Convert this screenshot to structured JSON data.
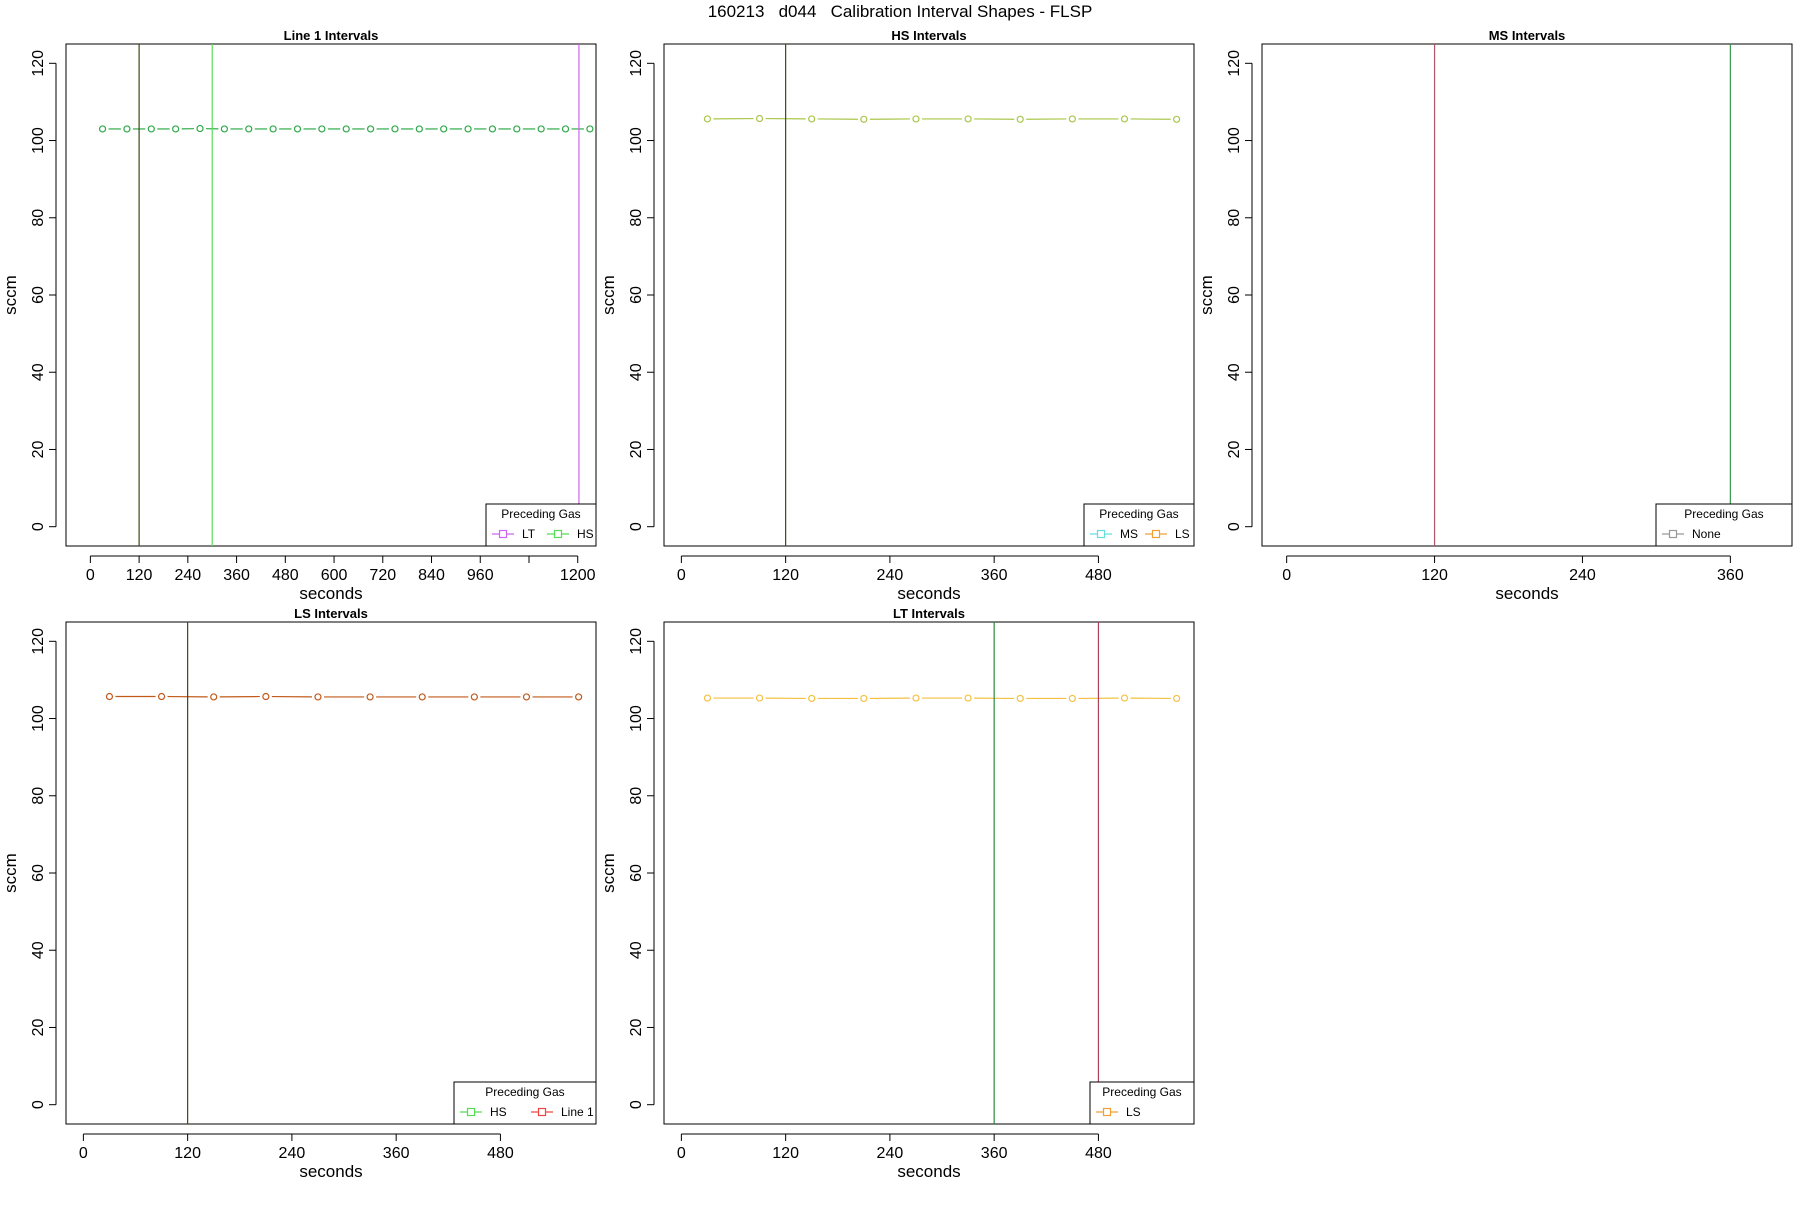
{
  "figure": {
    "title": "160213   d044   Calibration Interval Shapes - FLSP"
  },
  "chart_data": [
    {
      "type": "line",
      "title": "Line 1 Intervals",
      "xlabel": "seconds",
      "ylabel": "sccm",
      "xlim": [
        -60,
        1245
      ],
      "ylim": [
        -5,
        125
      ],
      "x_ticks": [
        0,
        120,
        240,
        360,
        480,
        600,
        720,
        840,
        960,
        1080,
        1200
      ],
      "x_tick_labels": [
        "0",
        "120",
        "240",
        "360",
        "480",
        "600",
        "720",
        "840",
        "960",
        "",
        "1200"
      ],
      "y_ticks": [
        0,
        20,
        40,
        60,
        80,
        100,
        120
      ],
      "series": [
        {
          "color": "#2faa4a",
          "x": [
            30,
            90,
            150,
            210,
            270,
            330,
            390,
            450,
            510,
            570,
            630,
            690,
            750,
            810,
            870,
            930,
            990,
            1050,
            1110,
            1170,
            1230
          ],
          "y": [
            103,
            103,
            103,
            103,
            103.1,
            103,
            103,
            103,
            103,
            103,
            103,
            103,
            103,
            103,
            103,
            103,
            103,
            103,
            103,
            103,
            103
          ]
        }
      ],
      "vlines": [
        {
          "x": 120,
          "color": "#3d4a12"
        },
        {
          "x": 300,
          "color": "#55dd55"
        },
        {
          "x": 1203,
          "color": "#cc66ee"
        }
      ],
      "legend": {
        "title": "Preceding Gas",
        "position": "bottom-right",
        "entries": [
          {
            "label": "LT",
            "color": "#cc66ee"
          },
          {
            "label": "HS",
            "color": "#55dd55"
          }
        ]
      }
    },
    {
      "type": "line",
      "title": "HS Intervals",
      "xlabel": "seconds",
      "ylabel": "sccm",
      "xlim": [
        -20,
        590
      ],
      "ylim": [
        -5,
        125
      ],
      "x_ticks": [
        0,
        120,
        240,
        360,
        480
      ],
      "x_tick_labels": [
        "0",
        "120",
        "240",
        "360",
        "480"
      ],
      "y_ticks": [
        0,
        20,
        40,
        60,
        80,
        100,
        120
      ],
      "series": [
        {
          "color": "#a8c64a",
          "x": [
            30,
            90,
            150,
            210,
            270,
            330,
            390,
            450,
            510,
            570
          ],
          "y": [
            105.6,
            105.7,
            105.6,
            105.5,
            105.6,
            105.6,
            105.5,
            105.6,
            105.6,
            105.5
          ]
        }
      ],
      "vlines": [
        {
          "x": 120,
          "color": "#3d4a12"
        }
      ],
      "legend": {
        "title": "Preceding Gas",
        "position": "bottom-right",
        "entries": [
          {
            "label": "MS",
            "color": "#66dddd"
          },
          {
            "label": "LS",
            "color": "#f0a030"
          }
        ]
      }
    },
    {
      "type": "line",
      "title": "MS Intervals",
      "xlabel": "seconds",
      "ylabel": "sccm",
      "xlim": [
        -20,
        410
      ],
      "ylim": [
        -5,
        125
      ],
      "x_ticks": [
        0,
        120,
        240,
        360
      ],
      "x_tick_labels": [
        "0",
        "120",
        "240",
        "360"
      ],
      "y_ticks": [
        0,
        20,
        40,
        60,
        80,
        100,
        120
      ],
      "series": [],
      "vlines": [
        {
          "x": 120,
          "color": "#b3556a"
        },
        {
          "x": 360,
          "color": "#3a9a4e"
        }
      ],
      "legend": {
        "title": "Preceding Gas",
        "position": "bottom-right",
        "entries": [
          {
            "label": "None",
            "color": "#999999"
          }
        ]
      }
    },
    {
      "type": "line",
      "title": "LS Intervals",
      "xlabel": "seconds",
      "ylabel": "sccm",
      "xlim": [
        -20,
        590
      ],
      "ylim": [
        -5,
        125
      ],
      "x_ticks": [
        0,
        120,
        240,
        360,
        480
      ],
      "x_tick_labels": [
        "0",
        "120",
        "240",
        "360",
        "480"
      ],
      "y_ticks": [
        0,
        20,
        40,
        60,
        80,
        100,
        120
      ],
      "series": [
        {
          "color": "#c25a1a",
          "x": [
            30,
            90,
            150,
            210,
            270,
            330,
            390,
            450,
            510,
            570
          ],
          "y": [
            105.7,
            105.7,
            105.6,
            105.7,
            105.6,
            105.6,
            105.6,
            105.6,
            105.6,
            105.6
          ]
        }
      ],
      "vlines": [
        {
          "x": 120,
          "color": "#3d4a12"
        }
      ],
      "legend": {
        "title": "Preceding Gas",
        "position": "bottom-right",
        "entries": [
          {
            "label": "HS",
            "color": "#55dd55"
          },
          {
            "label": "Line 1",
            "color": "#ee4444"
          }
        ]
      }
    },
    {
      "type": "line",
      "title": "LT Intervals",
      "xlabel": "seconds",
      "ylabel": "sccm",
      "xlim": [
        -20,
        590
      ],
      "ylim": [
        -5,
        125
      ],
      "x_ticks": [
        0,
        120,
        240,
        360,
        480
      ],
      "x_tick_labels": [
        "0",
        "120",
        "240",
        "360",
        "480"
      ],
      "y_ticks": [
        0,
        20,
        40,
        60,
        80,
        100,
        120
      ],
      "series": [
        {
          "color": "#f5c040",
          "x": [
            30,
            90,
            150,
            210,
            270,
            330,
            390,
            450,
            510,
            570
          ],
          "y": [
            105.3,
            105.3,
            105.2,
            105.2,
            105.3,
            105.3,
            105.2,
            105.2,
            105.3,
            105.2
          ]
        }
      ],
      "vlines": [
        {
          "x": 360,
          "color": "#2a8a3e"
        },
        {
          "x": 480,
          "color": "#b0405a"
        }
      ],
      "legend": {
        "title": "Preceding Gas",
        "position": "bottom-right",
        "entries": [
          {
            "label": "LS",
            "color": "#f0a030"
          }
        ]
      }
    }
  ]
}
